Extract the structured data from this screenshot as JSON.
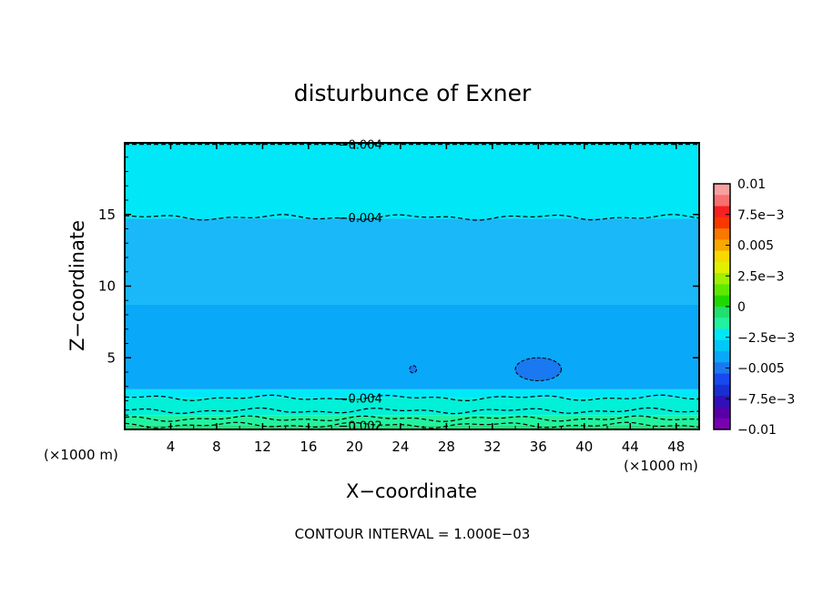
{
  "chart_data": {
    "type": "heatmap",
    "title": "disturbunce of Exner",
    "xlabel": "X−coordinate",
    "ylabel": "Z−coordinate",
    "x_unit": "(×1000 m)",
    "y_unit": "(×1000 m)",
    "xlim": [
      0,
      50
    ],
    "ylim": [
      0,
      20
    ],
    "x_ticks": [
      4,
      8,
      12,
      16,
      20,
      24,
      28,
      32,
      36,
      40,
      44,
      48
    ],
    "y_ticks": [
      5,
      10,
      15
    ],
    "note": "CONTOUR INTERVAL = 1.000E−03",
    "contour_interval": 0.001,
    "bands": [
      {
        "z_bottom": 0.0,
        "z_top": 0.3,
        "value": -0.002,
        "color": "#25e07a"
      },
      {
        "z_bottom": 0.3,
        "z_top": 1.0,
        "value": -0.0025,
        "color": "#22f2a0"
      },
      {
        "z_bottom": 1.0,
        "z_top": 2.2,
        "value": -0.003,
        "color": "#00f0d8"
      },
      {
        "z_bottom": 2.2,
        "z_top": 2.8,
        "value": -0.0035,
        "color": "#00e8f8"
      },
      {
        "z_bottom": 2.8,
        "z_top": 8.7,
        "value": -0.005,
        "color": "#0aa8f8"
      },
      {
        "z_bottom": 8.7,
        "z_top": 14.7,
        "value": -0.0045,
        "color": "#1ab8f8"
      },
      {
        "z_bottom": 14.7,
        "z_top": 20.0,
        "value": -0.003,
        "color": "#00e8f8"
      }
    ],
    "contours": [
      {
        "level": -0.004,
        "label": "−0.004",
        "z": 19.9,
        "label_x": 20.5
      },
      {
        "level": -0.004,
        "label": "−0.004",
        "z": 14.8,
        "label_x": 20.5
      },
      {
        "level": -0.004,
        "label": "−0.004",
        "z": 2.2,
        "label_x": 20.5
      },
      {
        "level": -0.003,
        "label": "",
        "z": 1.3,
        "label_x": 20.5
      },
      {
        "level": -0.0025,
        "label": "",
        "z": 0.75,
        "label_x": 20.5
      },
      {
        "level": -0.002,
        "label": "−0.002",
        "z": 0.3,
        "label_x": 20.5
      }
    ],
    "local_minima": [
      {
        "x": 36.0,
        "z": 4.2,
        "rx": 2.0,
        "rz": 0.8,
        "color": "#1a78f0"
      },
      {
        "x": 25.1,
        "z": 4.2,
        "rx": 0.3,
        "rz": 0.25,
        "color": "#1a78f0"
      }
    ],
    "colorbar": {
      "labels": [
        "0.01",
        "7.5e−3",
        "0.005",
        "2.5e−3",
        "0",
        "−2.5e−3",
        "−0.005",
        "−7.5e−3",
        "−0.01"
      ],
      "colors_top_to_bottom": [
        "#f8a0a0",
        "#f87070",
        "#f82020",
        "#f83800",
        "#f87800",
        "#f8a800",
        "#f8d800",
        "#e0f000",
        "#a0f000",
        "#60e800",
        "#20d800",
        "#20e070",
        "#22f2a0",
        "#00e8f8",
        "#00c8f8",
        "#0aa8f8",
        "#1a78f0",
        "#1848f0",
        "#1830d0",
        "#3010b8",
        "#5800a8",
        "#7800b0"
      ]
    }
  }
}
